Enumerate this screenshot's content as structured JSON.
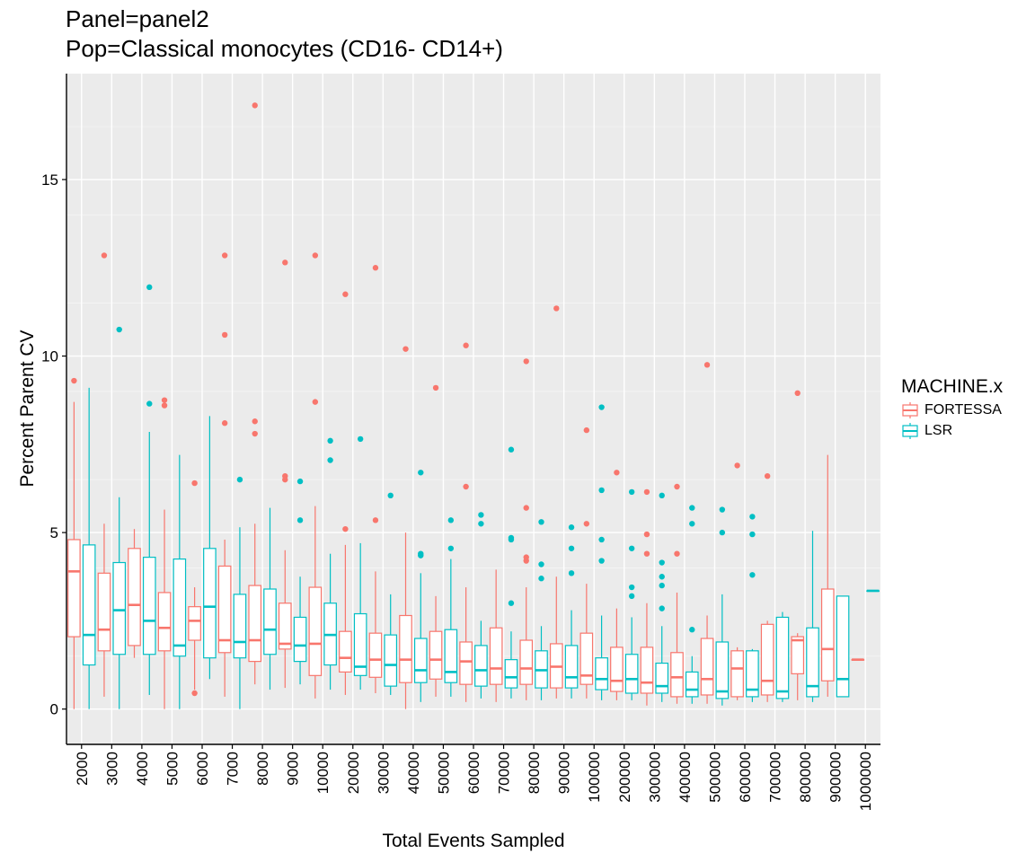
{
  "chart_data": {
    "type": "boxplot",
    "title": "Panel=panel2",
    "subtitle": "Pop=Classical monocytes (CD16- CD14+)",
    "xlabel": "Total Events Sampled",
    "ylabel": "Percent Parent CV",
    "ylim": [
      -1,
      18
    ],
    "yticks": [
      0,
      5,
      10,
      15
    ],
    "grid": true,
    "legend_position": "right",
    "legend_title": "MACHINE.x",
    "categories": [
      "2000",
      "3000",
      "4000",
      "5000",
      "6000",
      "7000",
      "8000",
      "9000",
      "10000",
      "20000",
      "30000",
      "40000",
      "50000",
      "60000",
      "70000",
      "80000",
      "90000",
      "100000",
      "200000",
      "300000",
      "400000",
      "500000",
      "600000",
      "700000",
      "800000",
      "900000",
      "1000000"
    ],
    "series": [
      {
        "name": "FORTESSA",
        "color": "#F8766D",
        "boxes": [
          {
            "whisker_low": 0,
            "q1": 2.05,
            "median": 3.9,
            "q3": 4.8,
            "whisker_high": 8.7,
            "outliers": [
              9.3
            ]
          },
          {
            "whisker_low": 0.35,
            "q1": 1.65,
            "median": 2.25,
            "q3": 3.85,
            "whisker_high": 5.25,
            "outliers": [
              12.85
            ]
          },
          {
            "whisker_low": 1.45,
            "q1": 1.8,
            "median": 2.95,
            "q3": 4.55,
            "whisker_high": 5.1,
            "outliers": []
          },
          {
            "whisker_low": 0,
            "q1": 1.65,
            "median": 2.3,
            "q3": 3.3,
            "whisker_high": 5.65,
            "outliers": [
              8.6,
              8.75
            ]
          },
          {
            "whisker_low": 0.55,
            "q1": 1.95,
            "median": 2.5,
            "q3": 2.9,
            "whisker_high": 3.45,
            "outliers": [
              0.45,
              6.4
            ]
          },
          {
            "whisker_low": 0.35,
            "q1": 1.6,
            "median": 1.95,
            "q3": 4.05,
            "whisker_high": 4.8,
            "outliers": [
              8.1,
              10.6,
              12.85
            ]
          },
          {
            "whisker_low": 0.7,
            "q1": 1.35,
            "median": 1.95,
            "q3": 3.5,
            "whisker_high": 5.25,
            "outliers": [
              7.8,
              8.15,
              17.1
            ]
          },
          {
            "whisker_low": 0.6,
            "q1": 1.7,
            "median": 1.85,
            "q3": 3.0,
            "whisker_high": 4.5,
            "outliers": [
              6.5,
              6.6,
              12.65
            ]
          },
          {
            "whisker_low": 0.3,
            "q1": 0.95,
            "median": 1.85,
            "q3": 3.45,
            "whisker_high": 5.75,
            "outliers": [
              8.7,
              12.85
            ]
          },
          {
            "whisker_low": 0.4,
            "q1": 1.05,
            "median": 1.45,
            "q3": 2.2,
            "whisker_high": 4.65,
            "outliers": [
              5.1,
              11.75
            ]
          },
          {
            "whisker_low": 0.45,
            "q1": 0.9,
            "median": 1.4,
            "q3": 2.15,
            "whisker_high": 3.9,
            "outliers": [
              5.35,
              12.5
            ]
          },
          {
            "whisker_low": 0,
            "q1": 0.75,
            "median": 1.4,
            "q3": 2.65,
            "whisker_high": 5.0,
            "outliers": [
              10.2
            ]
          },
          {
            "whisker_low": 0.35,
            "q1": 0.85,
            "median": 1.4,
            "q3": 2.2,
            "whisker_high": 3.2,
            "outliers": [
              9.1
            ]
          },
          {
            "whisker_low": 0.2,
            "q1": 0.7,
            "median": 1.35,
            "q3": 1.9,
            "whisker_high": 3.45,
            "outliers": [
              6.3,
              10.3
            ]
          },
          {
            "whisker_low": 0.2,
            "q1": 0.7,
            "median": 1.15,
            "q3": 2.3,
            "whisker_high": 3.95,
            "outliers": []
          },
          {
            "whisker_low": 0.25,
            "q1": 0.7,
            "median": 1.15,
            "q3": 1.95,
            "whisker_high": 3.45,
            "outliers": [
              4.2,
              4.3,
              5.7,
              9.85
            ]
          },
          {
            "whisker_low": 0.3,
            "q1": 0.6,
            "median": 1.2,
            "q3": 1.85,
            "whisker_high": 3.75,
            "outliers": [
              11.35
            ]
          },
          {
            "whisker_low": 0.3,
            "q1": 0.7,
            "median": 0.95,
            "q3": 2.15,
            "whisker_high": 3.55,
            "outliers": [
              5.25,
              7.9
            ]
          },
          {
            "whisker_low": 0.25,
            "q1": 0.5,
            "median": 0.8,
            "q3": 1.75,
            "whisker_high": 2.85,
            "outliers": [
              6.7
            ]
          },
          {
            "whisker_low": 0.1,
            "q1": 0.45,
            "median": 0.75,
            "q3": 1.75,
            "whisker_high": 3.0,
            "outliers": [
              4.4,
              4.95,
              6.15
            ]
          },
          {
            "whisker_low": 0.15,
            "q1": 0.35,
            "median": 0.9,
            "q3": 1.6,
            "whisker_high": 3.3,
            "outliers": [
              4.4,
              6.3
            ]
          },
          {
            "whisker_low": 0.15,
            "q1": 0.4,
            "median": 0.85,
            "q3": 2.0,
            "whisker_high": 2.65,
            "outliers": [
              9.75
            ]
          },
          {
            "whisker_low": 0.25,
            "q1": 0.35,
            "median": 1.15,
            "q3": 1.65,
            "whisker_high": 1.75,
            "outliers": [
              6.9
            ]
          },
          {
            "whisker_low": 0.2,
            "q1": 0.4,
            "median": 0.8,
            "q3": 2.4,
            "whisker_high": 2.5,
            "outliers": [
              6.6
            ]
          },
          {
            "whisker_low": 0.25,
            "q1": 1.0,
            "median": 1.95,
            "q3": 2.05,
            "whisker_high": 2.15,
            "outliers": [
              8.95
            ]
          },
          {
            "whisker_low": 0.35,
            "q1": 0.8,
            "median": 1.7,
            "q3": 3.4,
            "whisker_high": 7.2,
            "outliers": []
          },
          {
            "whisker_low": 1.4,
            "q1": 1.4,
            "median": 1.4,
            "q3": 1.4,
            "whisker_high": 1.4,
            "outliers": []
          }
        ]
      },
      {
        "name": "LSR",
        "color": "#00BFC4",
        "boxes": [
          {
            "whisker_low": 0,
            "q1": 1.25,
            "median": 2.1,
            "q3": 4.65,
            "whisker_high": 9.1,
            "outliers": []
          },
          {
            "whisker_low": 0,
            "q1": 1.55,
            "median": 2.8,
            "q3": 4.15,
            "whisker_high": 6.0,
            "outliers": [
              10.75
            ]
          },
          {
            "whisker_low": 0.4,
            "q1": 1.55,
            "median": 2.5,
            "q3": 4.3,
            "whisker_high": 7.85,
            "outliers": [
              8.65,
              11.95
            ]
          },
          {
            "whisker_low": 0,
            "q1": 1.5,
            "median": 1.8,
            "q3": 4.25,
            "whisker_high": 7.2,
            "outliers": []
          },
          {
            "whisker_low": 0.85,
            "q1": 1.45,
            "median": 2.9,
            "q3": 4.55,
            "whisker_high": 8.3,
            "outliers": []
          },
          {
            "whisker_low": 0,
            "q1": 1.45,
            "median": 1.9,
            "q3": 3.25,
            "whisker_high": 5.15,
            "outliers": [
              6.5
            ]
          },
          {
            "whisker_low": 0.55,
            "q1": 1.55,
            "median": 2.25,
            "q3": 3.4,
            "whisker_high": 5.7,
            "outliers": []
          },
          {
            "whisker_low": 0.7,
            "q1": 1.35,
            "median": 1.8,
            "q3": 2.6,
            "whisker_high": 3.75,
            "outliers": [
              5.35,
              6.45
            ]
          },
          {
            "whisker_low": 0.55,
            "q1": 1.25,
            "median": 2.1,
            "q3": 3.0,
            "whisker_high": 4.4,
            "outliers": [
              7.05,
              7.6
            ]
          },
          {
            "whisker_low": 0.55,
            "q1": 0.95,
            "median": 1.2,
            "q3": 2.7,
            "whisker_high": 4.7,
            "outliers": [
              7.65
            ]
          },
          {
            "whisker_low": 0.4,
            "q1": 0.65,
            "median": 1.25,
            "q3": 2.1,
            "whisker_high": 3.25,
            "outliers": [
              6.05
            ]
          },
          {
            "whisker_low": 0.2,
            "q1": 0.75,
            "median": 1.1,
            "q3": 2.0,
            "whisker_high": 3.85,
            "outliers": [
              4.35,
              4.4,
              6.7
            ]
          },
          {
            "whisker_low": 0.35,
            "q1": 0.75,
            "median": 1.05,
            "q3": 2.25,
            "whisker_high": 4.25,
            "outliers": [
              4.55,
              5.35
            ]
          },
          {
            "whisker_low": 0.3,
            "q1": 0.65,
            "median": 1.1,
            "q3": 1.8,
            "whisker_high": 2.5,
            "outliers": [
              5.25,
              5.5
            ]
          },
          {
            "whisker_low": 0.3,
            "q1": 0.6,
            "median": 0.9,
            "q3": 1.4,
            "whisker_high": 2.2,
            "outliers": [
              3.0,
              4.8,
              4.85,
              7.35
            ]
          },
          {
            "whisker_low": 0.25,
            "q1": 0.6,
            "median": 1.1,
            "q3": 1.65,
            "whisker_high": 2.35,
            "outliers": [
              3.7,
              4.1,
              5.3
            ]
          },
          {
            "whisker_low": 0.3,
            "q1": 0.6,
            "median": 0.9,
            "q3": 1.8,
            "whisker_high": 2.8,
            "outliers": [
              3.85,
              4.55,
              5.15
            ]
          },
          {
            "whisker_low": 0.25,
            "q1": 0.55,
            "median": 0.85,
            "q3": 1.45,
            "whisker_high": 2.65,
            "outliers": [
              4.2,
              4.8,
              6.2,
              8.55
            ]
          },
          {
            "whisker_low": 0.25,
            "q1": 0.45,
            "median": 0.85,
            "q3": 1.55,
            "whisker_high": 2.6,
            "outliers": [
              3.2,
              3.45,
              4.55,
              6.15
            ]
          },
          {
            "whisker_low": 0.2,
            "q1": 0.45,
            "median": 0.65,
            "q3": 1.3,
            "whisker_high": 2.35,
            "outliers": [
              2.85,
              3.5,
              3.75,
              4.15,
              6.05
            ]
          },
          {
            "whisker_low": 0.15,
            "q1": 0.35,
            "median": 0.55,
            "q3": 1.05,
            "whisker_high": 1.5,
            "outliers": [
              2.25,
              5.25,
              5.7
            ]
          },
          {
            "whisker_low": 0.1,
            "q1": 0.3,
            "median": 0.5,
            "q3": 1.9,
            "whisker_high": 3.25,
            "outliers": [
              5.0,
              5.65
            ]
          },
          {
            "whisker_low": 0.2,
            "q1": 0.35,
            "median": 0.55,
            "q3": 1.65,
            "whisker_high": 1.7,
            "outliers": [
              3.8,
              4.95,
              5.45
            ]
          },
          {
            "whisker_low": 0.2,
            "q1": 0.3,
            "median": 0.5,
            "q3": 2.6,
            "whisker_high": 2.75,
            "outliers": []
          },
          {
            "whisker_low": 0.2,
            "q1": 0.35,
            "median": 0.65,
            "q3": 2.3,
            "whisker_high": 5.05,
            "outliers": []
          },
          {
            "whisker_low": 0.35,
            "q1": 0.35,
            "median": 0.85,
            "q3": 3.2,
            "whisker_high": 3.2,
            "outliers": []
          },
          {
            "whisker_low": 3.35,
            "q1": 3.35,
            "median": 3.35,
            "q3": 3.35,
            "whisker_high": 3.35,
            "outliers": []
          }
        ]
      }
    ]
  }
}
